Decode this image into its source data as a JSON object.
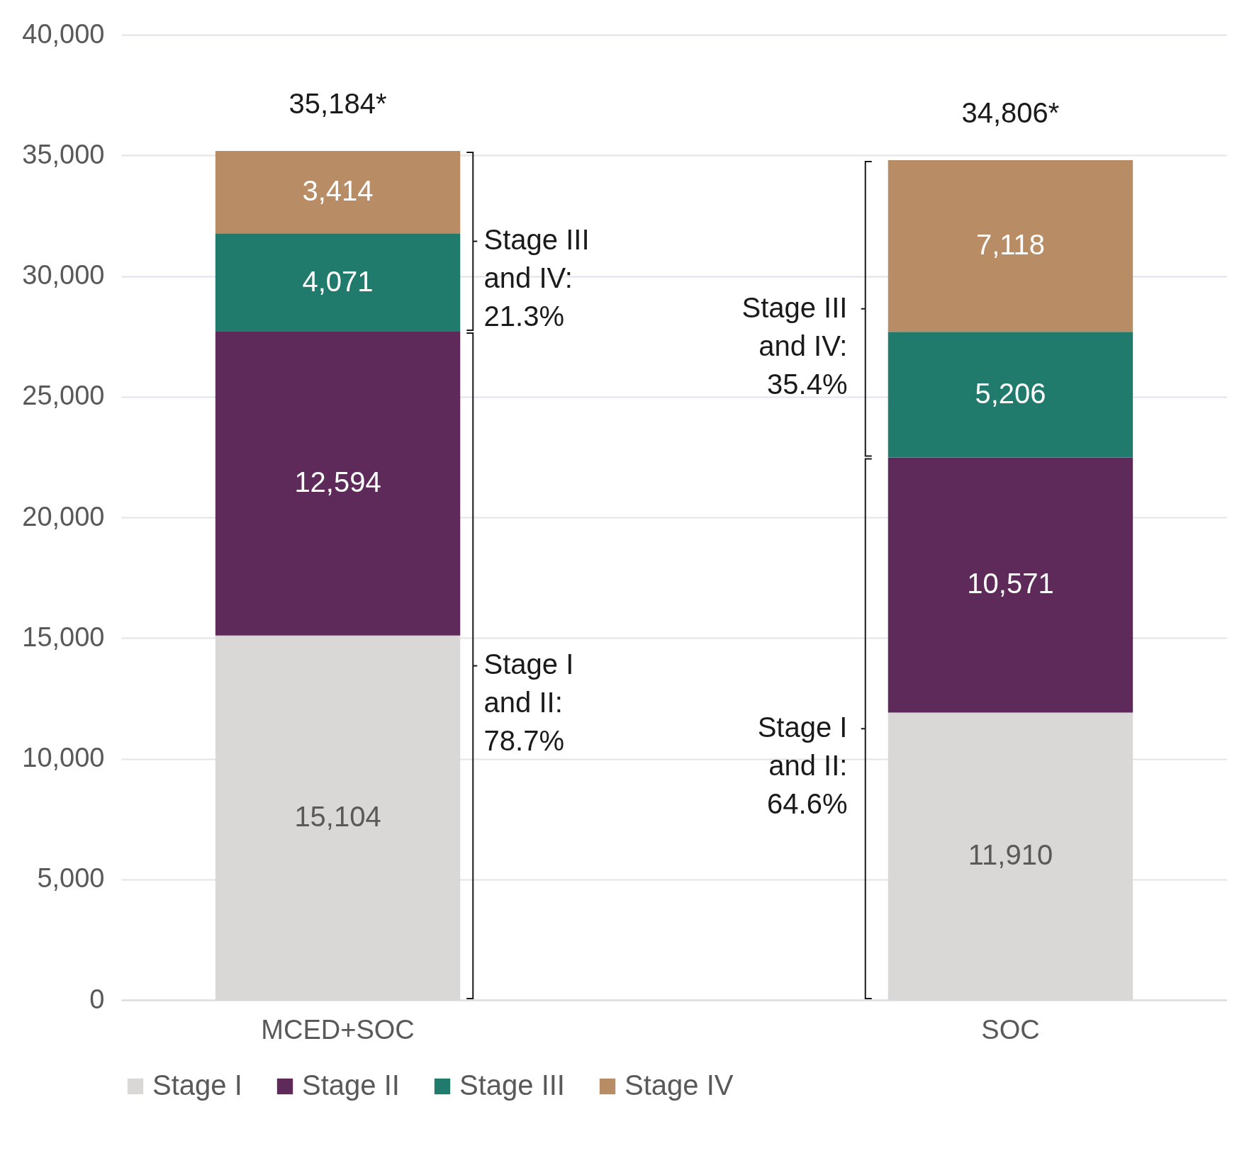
{
  "chart_data": {
    "type": "bar",
    "stacked": true,
    "categories": [
      "MCED+SOC",
      "SOC"
    ],
    "series": [
      {
        "name": "Stage I",
        "color": "#d9d8d6",
        "values": [
          15104,
          11910
        ],
        "value_labels": [
          "15,104",
          "11,910"
        ]
      },
      {
        "name": "Stage II",
        "color": "#5e2a5a",
        "values": [
          12594,
          10571
        ],
        "value_labels": [
          "12,594",
          "10,571"
        ]
      },
      {
        "name": "Stage III",
        "color": "#207b6c",
        "values": [
          4071,
          5206
        ],
        "value_labels": [
          "4,071",
          "5,206"
        ]
      },
      {
        "name": "Stage IV",
        "color": "#b88c65",
        "values": [
          3414,
          7118
        ],
        "value_labels": [
          "3,414",
          "7,118"
        ]
      }
    ],
    "ylim": [
      0,
      40000
    ],
    "yticks": [
      0,
      {
        "value": 5000,
        "label": "5,000"
      },
      {
        "value": 10000,
        "label": "10,000"
      },
      {
        "value": 15000,
        "label": "15,000"
      },
      {
        "value": 20000,
        "label": "20,000"
      },
      {
        "value": 25000,
        "label": "25,000"
      },
      {
        "value": 30000,
        "label": "30,000"
      },
      {
        "value": 35000,
        "label": "35,000"
      },
      {
        "value": 40000,
        "label": "40,000"
      }
    ],
    "grid": "y",
    "legend": "bottom",
    "totals": [
      "35,184*",
      "34,806*"
    ],
    "annotations": [
      "Stage III\nand IV:\n21.3%",
      "Stage I\nand II:\n78.7%",
      "Stage III\nand IV:\n35.4%",
      "Stage I\nand II:\n64.6%"
    ]
  }
}
